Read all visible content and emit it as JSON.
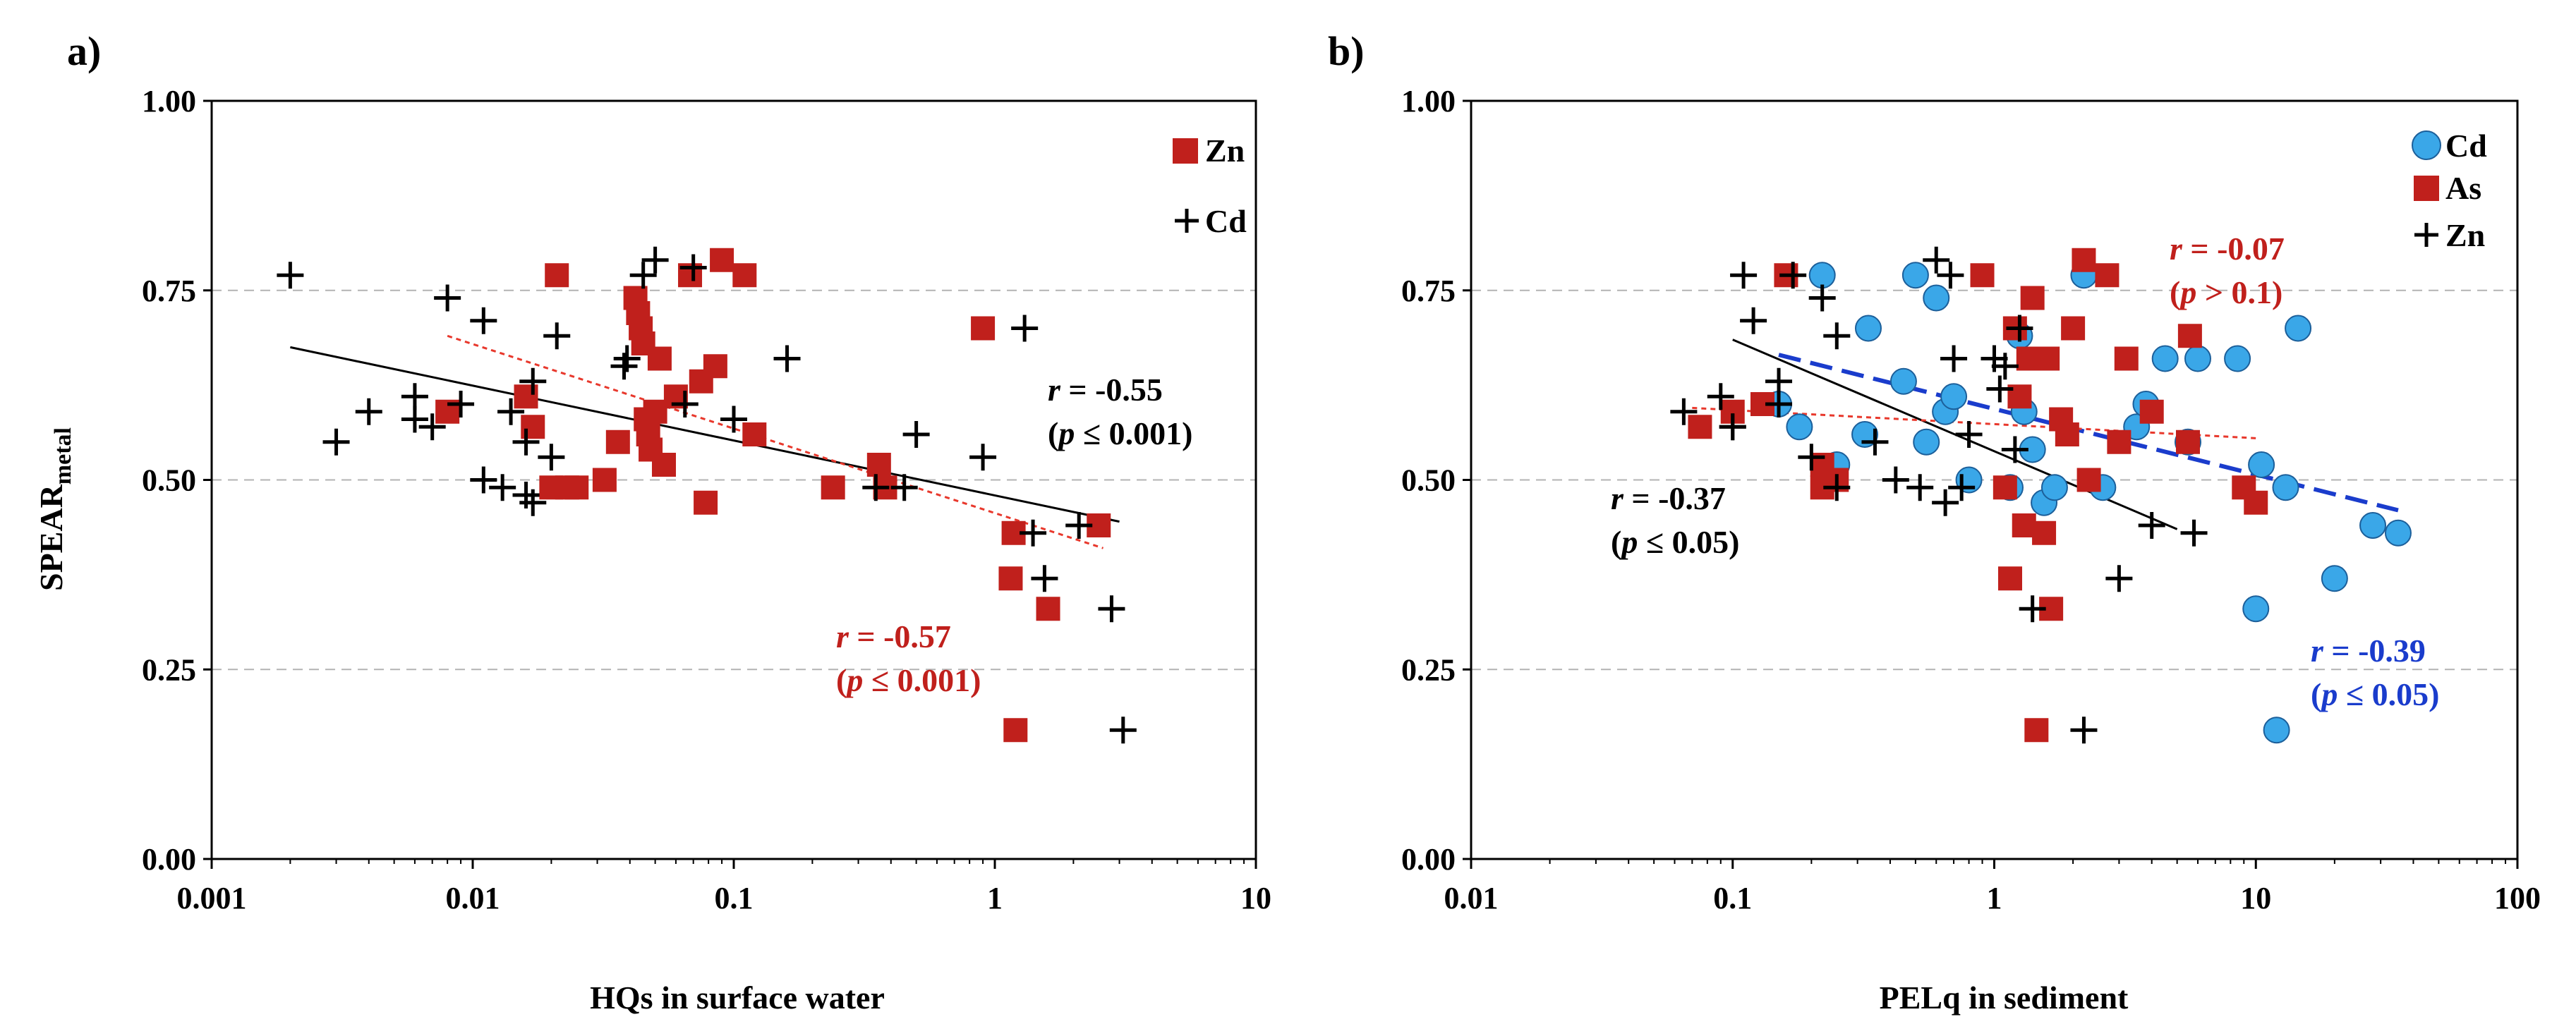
{
  "chart_data": [
    {
      "panel_label": "a)",
      "type": "scatter",
      "xscale": "log",
      "xlim": [
        0.001,
        10
      ],
      "ylim": [
        0,
        1
      ],
      "xticks": [
        "0.001",
        "0.01",
        "0.1",
        "1",
        "10"
      ],
      "yticks": [
        "0.00",
        "0.25",
        "0.50",
        "0.75",
        "1.00"
      ],
      "xlabel": "HQs in surface water",
      "ylabel_main": "SPEAR",
      "ylabel_sub": "metal",
      "gridlines": "y-dashed",
      "legend": [
        {
          "name": "Zn",
          "marker": "square",
          "color": "#c0201c"
        },
        {
          "name": "Cd",
          "marker": "plus",
          "color": "#000000"
        }
      ],
      "legend_position": "top-right",
      "series": [
        {
          "name": "Zn",
          "marker": "square",
          "color": "#c0201c",
          "points": [
            [
              0.008,
              0.59
            ],
            [
              0.016,
              0.61
            ],
            [
              0.017,
              0.57
            ],
            [
              0.02,
              0.49
            ],
            [
              0.021,
              0.77
            ],
            [
              0.023,
              0.49
            ],
            [
              0.025,
              0.49
            ],
            [
              0.032,
              0.5
            ],
            [
              0.036,
              0.55
            ],
            [
              0.042,
              0.74
            ],
            [
              0.043,
              0.72
            ],
            [
              0.044,
              0.7
            ],
            [
              0.045,
              0.68
            ],
            [
              0.046,
              0.58
            ],
            [
              0.047,
              0.56
            ],
            [
              0.048,
              0.54
            ],
            [
              0.05,
              0.59
            ],
            [
              0.052,
              0.66
            ],
            [
              0.054,
              0.52
            ],
            [
              0.06,
              0.61
            ],
            [
              0.068,
              0.77
            ],
            [
              0.075,
              0.63
            ],
            [
              0.078,
              0.47
            ],
            [
              0.085,
              0.65
            ],
            [
              0.09,
              0.79
            ],
            [
              0.11,
              0.77
            ],
            [
              0.12,
              0.56
            ],
            [
              0.24,
              0.49
            ],
            [
              0.36,
              0.52
            ],
            [
              0.38,
              0.49
            ],
            [
              0.9,
              0.7
            ],
            [
              1.15,
              0.37
            ],
            [
              1.18,
              0.43
            ],
            [
              1.2,
              0.17
            ],
            [
              1.6,
              0.33
            ],
            [
              2.5,
              0.44
            ]
          ]
        },
        {
          "name": "Cd",
          "marker": "plus",
          "color": "#000000",
          "points": [
            [
              0.002,
              0.77
            ],
            [
              0.003,
              0.55
            ],
            [
              0.004,
              0.59
            ],
            [
              0.006,
              0.61
            ],
            [
              0.006,
              0.58
            ],
            [
              0.007,
              0.57
            ],
            [
              0.008,
              0.74
            ],
            [
              0.009,
              0.6
            ],
            [
              0.011,
              0.5
            ],
            [
              0.011,
              0.71
            ],
            [
              0.013,
              0.49
            ],
            [
              0.014,
              0.59
            ],
            [
              0.016,
              0.48
            ],
            [
              0.016,
              0.55
            ],
            [
              0.017,
              0.47
            ],
            [
              0.017,
              0.63
            ],
            [
              0.02,
              0.53
            ],
            [
              0.021,
              0.69
            ],
            [
              0.038,
              0.65
            ],
            [
              0.039,
              0.66
            ],
            [
              0.045,
              0.77
            ],
            [
              0.05,
              0.79
            ],
            [
              0.065,
              0.6
            ],
            [
              0.07,
              0.78
            ],
            [
              0.1,
              0.58
            ],
            [
              0.16,
              0.66
            ],
            [
              0.35,
              0.49
            ],
            [
              0.45,
              0.49
            ],
            [
              0.5,
              0.56
            ],
            [
              0.9,
              0.53
            ],
            [
              1.3,
              0.7
            ],
            [
              1.4,
              0.43
            ],
            [
              1.55,
              0.37
            ],
            [
              2.1,
              0.44
            ],
            [
              2.8,
              0.33
            ],
            [
              3.1,
              0.17
            ]
          ]
        }
      ],
      "fits": [
        {
          "series": "Cd",
          "style": "solid",
          "color": "#000000",
          "from": [
            0.002,
            0.675
          ],
          "to": [
            3.0,
            0.445
          ]
        },
        {
          "series": "Zn",
          "style": "dotted",
          "color": "#e8382c",
          "from": [
            0.008,
            0.69
          ],
          "to": [
            2.6,
            0.41
          ]
        }
      ],
      "annotations": [
        {
          "r_label": "r",
          "r_value": " = -0.55",
          "p_label": "p",
          "p_text": " ≤ 0.001)",
          "color": "#000000"
        },
        {
          "r_label": "r",
          "r_value": " = -0.57",
          "p_label": "p",
          "p_text": " ≤ 0.001)",
          "color": "#c0201c"
        }
      ]
    },
    {
      "panel_label": "b)",
      "type": "scatter",
      "xscale": "log",
      "xlim": [
        0.01,
        100
      ],
      "ylim": [
        0,
        1
      ],
      "xticks": [
        "0.01",
        "0.1",
        "1",
        "10",
        "100"
      ],
      "yticks": [
        "0.00",
        "0.25",
        "0.50",
        "0.75",
        "1.00"
      ],
      "xlabel": "PELq in sediment",
      "gridlines": "y-dashed",
      "legend": [
        {
          "name": "Cd",
          "marker": "circle",
          "color": "#3aa7e8"
        },
        {
          "name": "As",
          "marker": "square",
          "color": "#c0201c"
        },
        {
          "name": "Zn",
          "marker": "plus",
          "color": "#000000"
        }
      ],
      "legend_position": "top-right",
      "series": [
        {
          "name": "Cd",
          "marker": "circle",
          "color": "#3aa7e8",
          "points": [
            [
              0.15,
              0.6
            ],
            [
              0.18,
              0.57
            ],
            [
              0.22,
              0.77
            ],
            [
              0.25,
              0.52
            ],
            [
              0.32,
              0.56
            ],
            [
              0.33,
              0.7
            ],
            [
              0.45,
              0.63
            ],
            [
              0.5,
              0.77
            ],
            [
              0.55,
              0.55
            ],
            [
              0.6,
              0.74
            ],
            [
              0.65,
              0.59
            ],
            [
              0.7,
              0.61
            ],
            [
              0.8,
              0.5
            ],
            [
              1.15,
              0.49
            ],
            [
              1.25,
              0.69
            ],
            [
              1.3,
              0.59
            ],
            [
              1.4,
              0.54
            ],
            [
              1.55,
              0.47
            ],
            [
              1.7,
              0.49
            ],
            [
              2.2,
              0.77
            ],
            [
              2.6,
              0.49
            ],
            [
              3.5,
              0.57
            ],
            [
              3.8,
              0.6
            ],
            [
              4.5,
              0.66
            ],
            [
              5.5,
              0.55
            ],
            [
              6.0,
              0.66
            ],
            [
              8.5,
              0.66
            ],
            [
              10.5,
              0.52
            ],
            [
              12.0,
              0.17
            ],
            [
              13.0,
              0.49
            ],
            [
              14.5,
              0.7
            ],
            [
              20.0,
              0.37
            ],
            [
              28.0,
              0.44
            ],
            [
              35.0,
              0.43
            ],
            [
              10.0,
              0.33
            ]
          ]
        },
        {
          "name": "As",
          "marker": "square",
          "color": "#c0201c",
          "points": [
            [
              0.075,
              0.57
            ],
            [
              0.1,
              0.59
            ],
            [
              0.13,
              0.6
            ],
            [
              0.16,
              0.77
            ],
            [
              0.22,
              0.49
            ],
            [
              0.22,
              0.52
            ],
            [
              0.25,
              0.5
            ],
            [
              0.9,
              0.77
            ],
            [
              1.1,
              0.49
            ],
            [
              1.15,
              0.37
            ],
            [
              1.2,
              0.7
            ],
            [
              1.25,
              0.61
            ],
            [
              1.3,
              0.44
            ],
            [
              1.35,
              0.66
            ],
            [
              1.4,
              0.74
            ],
            [
              1.45,
              0.17
            ],
            [
              1.55,
              0.43
            ],
            [
              1.6,
              0.66
            ],
            [
              1.65,
              0.33
            ],
            [
              1.8,
              0.58
            ],
            [
              1.9,
              0.56
            ],
            [
              2.0,
              0.7
            ],
            [
              2.2,
              0.79
            ],
            [
              2.3,
              0.5
            ],
            [
              2.7,
              0.77
            ],
            [
              3.0,
              0.55
            ],
            [
              3.2,
              0.66
            ],
            [
              4.0,
              0.59
            ],
            [
              5.5,
              0.55
            ],
            [
              5.6,
              0.69
            ],
            [
              9.0,
              0.49
            ],
            [
              10.0,
              0.47
            ]
          ]
        },
        {
          "name": "Zn",
          "marker": "plus",
          "color": "#000000",
          "points": [
            [
              0.065,
              0.59
            ],
            [
              0.09,
              0.61
            ],
            [
              0.1,
              0.57
            ],
            [
              0.1,
              0.57
            ],
            [
              0.11,
              0.77
            ],
            [
              0.12,
              0.71
            ],
            [
              0.15,
              0.6
            ],
            [
              0.15,
              0.63
            ],
            [
              0.17,
              0.77
            ],
            [
              0.2,
              0.53
            ],
            [
              0.22,
              0.74
            ],
            [
              0.25,
              0.49
            ],
            [
              0.25,
              0.69
            ],
            [
              0.35,
              0.55
            ],
            [
              0.42,
              0.5
            ],
            [
              0.52,
              0.49
            ],
            [
              0.6,
              0.79
            ],
            [
              0.65,
              0.47
            ],
            [
              0.68,
              0.77
            ],
            [
              0.7,
              0.66
            ],
            [
              0.75,
              0.49
            ],
            [
              0.8,
              0.56
            ],
            [
              1.0,
              0.66
            ],
            [
              1.05,
              0.62
            ],
            [
              1.1,
              0.65
            ],
            [
              1.2,
              0.54
            ],
            [
              1.25,
              0.7
            ],
            [
              1.4,
              0.33
            ],
            [
              2.2,
              0.17
            ],
            [
              3.0,
              0.37
            ],
            [
              4.0,
              0.44
            ],
            [
              5.8,
              0.43
            ]
          ]
        }
      ],
      "fits": [
        {
          "series": "Zn",
          "style": "solid",
          "color": "#000000",
          "from": [
            0.1,
            0.685
          ],
          "to": [
            5.0,
            0.435
          ]
        },
        {
          "series": "Cd",
          "style": "dashed",
          "color": "#1a3ccc",
          "from": [
            0.15,
            0.665
          ],
          "to": [
            35.0,
            0.46
          ]
        },
        {
          "series": "As",
          "style": "dotted",
          "color": "#e8382c",
          "from": [
            0.07,
            0.595
          ],
          "to": [
            10.0,
            0.555
          ]
        }
      ],
      "annotations": [
        {
          "r_label": "r",
          "r_value": " = -0.07",
          "p_label": "p",
          "p_text": " > 0.1)",
          "color": "#c0201c"
        },
        {
          "r_label": "r",
          "r_value": " = -0.37",
          "p_label": "p",
          "p_text": " ≤ 0.05)",
          "color": "#000000"
        },
        {
          "r_label": "r",
          "r_value": " = -0.39",
          "p_label": "p",
          "p_text": " ≤ 0.05)",
          "color": "#1a3ccc"
        }
      ]
    }
  ]
}
